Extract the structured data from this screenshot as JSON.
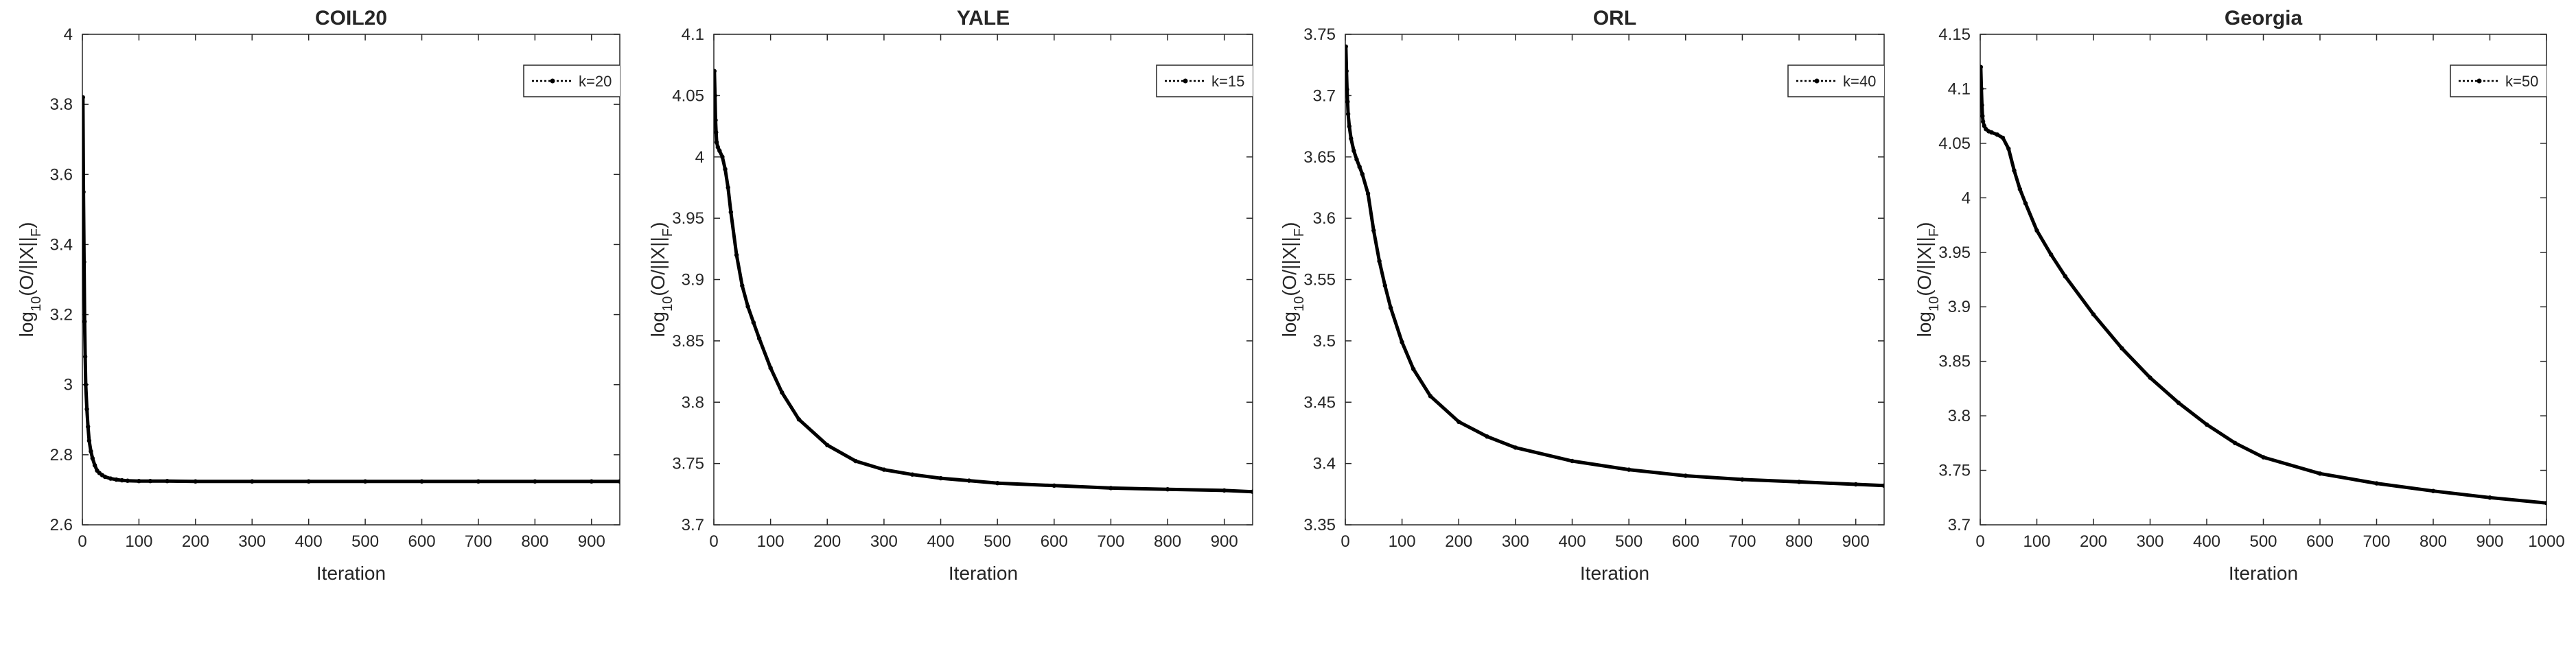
{
  "chart_data": [
    {
      "type": "line",
      "title": "COIL20",
      "xlabel": "Iteration",
      "ylabel": "log10(O/||X||F)",
      "xlim": [
        0,
        950
      ],
      "ylim": [
        2.6,
        4
      ],
      "xticks": [
        0,
        100,
        200,
        300,
        400,
        500,
        600,
        700,
        800,
        900
      ],
      "yticks": [
        2.6,
        2.8,
        3,
        3.2,
        3.4,
        3.6,
        3.8,
        4
      ],
      "legend": "top-right",
      "series": [
        {
          "name": "k=20",
          "x": [
            1,
            2,
            3,
            4,
            5,
            6,
            8,
            10,
            12,
            15,
            18,
            22,
            26,
            30,
            35,
            40,
            50,
            60,
            70,
            80,
            100,
            120,
            150,
            200,
            300,
            400,
            500,
            600,
            700,
            800,
            900,
            950
          ],
          "y": [
            3.82,
            3.55,
            3.35,
            3.18,
            3.08,
            3.0,
            2.93,
            2.88,
            2.84,
            2.81,
            2.79,
            2.77,
            2.755,
            2.748,
            2.742,
            2.737,
            2.732,
            2.729,
            2.727,
            2.726,
            2.725,
            2.725,
            2.725,
            2.724,
            2.724,
            2.724,
            2.724,
            2.724,
            2.724,
            2.724,
            2.724,
            2.724
          ]
        }
      ]
    },
    {
      "type": "line",
      "title": "YALE",
      "xlabel": "Iteration",
      "ylabel": "log10(O/||X||F)",
      "xlim": [
        0,
        950
      ],
      "ylim": [
        3.7,
        4.1
      ],
      "xticks": [
        0,
        100,
        200,
        300,
        400,
        500,
        600,
        700,
        800,
        900
      ],
      "yticks": [
        3.7,
        3.75,
        3.8,
        3.85,
        3.9,
        3.95,
        4,
        4.05,
        4.1
      ],
      "legend": "top-right",
      "series": [
        {
          "name": "k=15",
          "x": [
            1,
            2,
            3,
            4,
            5,
            7,
            10,
            15,
            20,
            25,
            30,
            40,
            50,
            60,
            70,
            80,
            100,
            120,
            150,
            200,
            250,
            300,
            350,
            400,
            450,
            500,
            600,
            700,
            800,
            900,
            950
          ],
          "y": [
            4.07,
            4.05,
            4.03,
            4.02,
            4.012,
            4.008,
            4.005,
            4.0,
            3.99,
            3.975,
            3.955,
            3.92,
            3.895,
            3.878,
            3.865,
            3.852,
            3.828,
            3.808,
            3.786,
            3.765,
            3.752,
            3.745,
            3.741,
            3.738,
            3.736,
            3.734,
            3.732,
            3.73,
            3.729,
            3.728,
            3.727
          ]
        }
      ]
    },
    {
      "type": "line",
      "title": "ORL",
      "xlabel": "Iteration",
      "ylabel": "log10(O/||X||F)",
      "xlim": [
        0,
        950
      ],
      "ylim": [
        3.35,
        3.75
      ],
      "xticks": [
        0,
        100,
        200,
        300,
        400,
        500,
        600,
        700,
        800,
        900
      ],
      "yticks": [
        3.35,
        3.4,
        3.45,
        3.5,
        3.55,
        3.6,
        3.65,
        3.7,
        3.75
      ],
      "legend": "top-right",
      "series": [
        {
          "name": "k=40",
          "x": [
            1,
            2,
            3,
            4,
            5,
            7,
            10,
            15,
            20,
            25,
            30,
            40,
            50,
            60,
            70,
            80,
            100,
            120,
            150,
            200,
            250,
            300,
            400,
            500,
            600,
            700,
            800,
            900,
            950
          ],
          "y": [
            3.74,
            3.72,
            3.705,
            3.695,
            3.685,
            3.675,
            3.665,
            3.655,
            3.648,
            3.642,
            3.636,
            3.62,
            3.59,
            3.565,
            3.545,
            3.527,
            3.499,
            3.477,
            3.455,
            3.434,
            3.422,
            3.413,
            3.402,
            3.395,
            3.39,
            3.387,
            3.385,
            3.383,
            3.382
          ]
        }
      ]
    },
    {
      "type": "line",
      "title": "Georgia",
      "xlabel": "Iteration",
      "ylabel": "log10(O/||X||F)",
      "xlim": [
        0,
        1000
      ],
      "ylim": [
        3.7,
        4.15
      ],
      "xticks": [
        0,
        100,
        200,
        300,
        400,
        500,
        600,
        700,
        800,
        900,
        1000
      ],
      "yticks": [
        3.7,
        3.75,
        3.8,
        3.85,
        3.9,
        3.95,
        4,
        4.05,
        4.1,
        4.15
      ],
      "legend": "top-right",
      "series": [
        {
          "name": "k=50",
          "x": [
            1,
            2,
            3,
            4,
            5,
            7,
            10,
            15,
            20,
            30,
            40,
            50,
            60,
            70,
            80,
            100,
            125,
            150,
            200,
            250,
            300,
            350,
            400,
            450,
            500,
            600,
            700,
            800,
            900,
            1000
          ],
          "y": [
            4.12,
            4.1,
            4.085,
            4.075,
            4.07,
            4.066,
            4.063,
            4.061,
            4.06,
            4.058,
            4.055,
            4.045,
            4.025,
            4.008,
            3.995,
            3.97,
            3.948,
            3.928,
            3.893,
            3.862,
            3.835,
            3.812,
            3.792,
            3.775,
            3.762,
            3.747,
            3.738,
            3.731,
            3.725,
            3.72
          ]
        }
      ]
    }
  ]
}
